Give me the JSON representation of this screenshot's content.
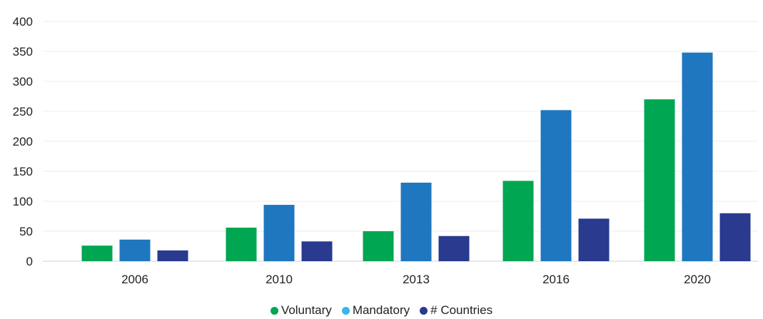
{
  "chart_data": {
    "type": "bar",
    "categories": [
      "2006",
      "2010",
      "2013",
      "2016",
      "2020"
    ],
    "series": [
      {
        "name": "Voluntary",
        "color": "#00a651",
        "values": [
          26,
          56,
          50,
          134,
          270
        ]
      },
      {
        "name": "Mandatory",
        "color": "#1f77c0",
        "values": [
          36,
          94,
          131,
          252,
          348
        ]
      },
      {
        "name": "# Countries",
        "color": "#293a8f",
        "values": [
          18,
          33,
          42,
          71,
          80
        ]
      }
    ],
    "legend_colors": [
      "#00a651",
      "#3cb6ea",
      "#293a8f"
    ],
    "title": "",
    "xlabel": "",
    "ylabel": "",
    "ylim": [
      0,
      400
    ],
    "yticks": [
      "0",
      "50",
      "100",
      "150",
      "200",
      "250",
      "300",
      "350",
      "400"
    ],
    "grid": true,
    "legend_position": "bottom-center"
  }
}
